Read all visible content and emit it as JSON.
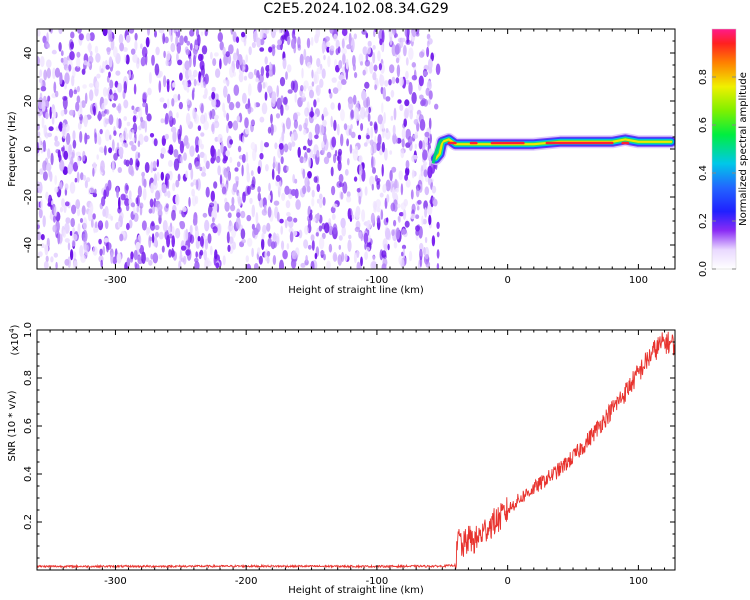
{
  "title": "C2E5.2024.102.08.34.G29",
  "spectrogram": {
    "xlabel": "Height of straight line (km)",
    "ylabel": "Frequency (Hz)",
    "xticks": [
      "-300",
      "-200",
      "-100",
      "0",
      "100"
    ],
    "yticks": [
      "40",
      "20",
      "0",
      "-20",
      "-40"
    ],
    "colorbar_label": "Normalized spectral amplitude",
    "colorbar_ticks": [
      "0.0",
      "0.2",
      "0.4",
      "0.6",
      "0.8"
    ]
  },
  "snr": {
    "xlabel": "Height of straight line (km)",
    "ylabel": "SNR (10 * v/v)",
    "scale_label": "(x10",
    "scale_exp": "4",
    "scale_close": ")",
    "xticks": [
      "-300",
      "-200",
      "-100",
      "0",
      "100"
    ],
    "yticks": [
      "1.0",
      "0.8",
      "0.6",
      "0.4",
      "0.2"
    ]
  },
  "colors": {
    "snr_line": "#e8332e",
    "noise_purple": "#7a20f0",
    "signal_core": "#ff2030"
  },
  "chart_data": [
    {
      "type": "heatmap",
      "title": "C2E5.2024.102.08.34.G29",
      "xlabel": "Height of straight line (km)",
      "ylabel": "Frequency (Hz)",
      "xlim": [
        -360,
        128
      ],
      "ylim": [
        -50,
        50
      ],
      "zlim": [
        0,
        1
      ],
      "zlabel": "Normalized spectral amplitude",
      "regions": [
        {
          "name": "",
          "x_range": [
            -360,
            -53
          ],
          "y_range": [
            -50,
            50
          ],
          "amplitude_range": [
            0.0,
            0.15
          ]
        },
        {
          "name": "",
          "x_range": [
            -53,
            128
          ],
          "y_range": [
            0,
            6
          ],
          "amplitude_range": [
            0.3,
            0.95
          ]
        }
      ],
      "signal_track": {
        "x": [
          -55,
          -52,
          -50,
          -45,
          -40,
          -30,
          -20,
          -10,
          0,
          20,
          40,
          60,
          80,
          90,
          100,
          110,
          125
        ],
        "y": [
          -4,
          -2,
          3,
          4,
          2,
          2,
          2,
          2,
          2,
          2,
          3,
          3,
          3,
          4,
          3,
          3,
          3
        ]
      }
    },
    {
      "type": "line",
      "xlabel": "Height of straight line (km)",
      "ylabel": "SNR (10 * v/v)",
      "xlim": [
        -360,
        128
      ],
      "ylim": [
        0,
        1.0
      ],
      "y_scale_factor": 10000,
      "series": [
        {
          "x": [
            -360,
            -300,
            -200,
            -100,
            -50,
            -40,
            -37,
            -35,
            -30,
            -25,
            -20,
            -15,
            -10,
            -5,
            0,
            10,
            20,
            30,
            40,
            50,
            60,
            70,
            80,
            90,
            100,
            110,
            115,
            120,
            128
          ],
          "y": [
            0.015,
            0.015,
            0.016,
            0.015,
            0.016,
            0.02,
            0.15,
            0.09,
            0.13,
            0.12,
            0.15,
            0.18,
            0.2,
            0.22,
            0.25,
            0.3,
            0.34,
            0.38,
            0.42,
            0.47,
            0.53,
            0.6,
            0.67,
            0.74,
            0.82,
            0.9,
            0.93,
            0.95,
            0.94
          ]
        }
      ]
    }
  ]
}
